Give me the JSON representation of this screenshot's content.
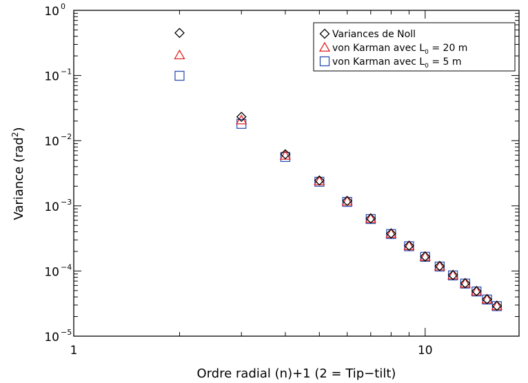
{
  "chart_data": {
    "type": "scatter",
    "x_scale": "log",
    "y_scale": "log",
    "xlim": [
      1,
      18.5
    ],
    "ylim": [
      1e-05,
      1
    ],
    "xlabel": "Ordre radial (n)+1 (2 = Tip−tilt)",
    "ylabel_base": "Variance (rad",
    "ylabel_sup": "2",
    "ylabel_end": ")",
    "x_ticks": [
      {
        "value": 1,
        "label": "1"
      },
      {
        "value": 10,
        "label": "10"
      }
    ],
    "y_ticks": [
      {
        "value": 1,
        "base": "10",
        "exp": "0"
      },
      {
        "value": 0.1,
        "base": "10",
        "exp": "−1"
      },
      {
        "value": 0.01,
        "base": "10",
        "exp": "−2"
      },
      {
        "value": 0.001,
        "base": "10",
        "exp": "−3"
      },
      {
        "value": 0.0001,
        "base": "10",
        "exp": "−4"
      },
      {
        "value": 1e-05,
        "base": "10",
        "exp": "−5"
      }
    ],
    "x": [
      2,
      3,
      4,
      5,
      6,
      7,
      8,
      9,
      10,
      11,
      12,
      13,
      14,
      15,
      16
    ],
    "series": [
      {
        "name_parts": [
          "Variances de Noll"
        ],
        "marker": "diamond",
        "color": "#000000",
        "values": [
          0.45,
          0.0232,
          0.00619,
          0.00245,
          0.00119,
          0.00064,
          0.000376,
          0.000244,
          0.000167,
          0.000119,
          8.66e-05,
          6.49e-05,
          4.91e-05,
          3.69e-05,
          2.92e-05
        ]
      },
      {
        "name_parts": [
          "von Karman avec L",
          "0",
          " = 20 m"
        ],
        "marker": "triangle",
        "color": "#e02020",
        "values": [
          0.205,
          0.0206,
          0.0059,
          0.00239,
          0.00117,
          0.000635,
          0.000373,
          0.000242,
          0.000166,
          0.000118,
          8.6e-05,
          6.45e-05,
          4.88e-05,
          3.67e-05,
          2.9e-05
        ]
      },
      {
        "name_parts": [
          "von Karman avec L",
          "0",
          " = 5 m"
        ],
        "marker": "square",
        "color": "#3050b0",
        "values": [
          0.099,
          0.0181,
          0.00562,
          0.00234,
          0.00115,
          0.000627,
          0.000369,
          0.00024,
          0.000165,
          0.000117,
          8.55e-05,
          6.41e-05,
          4.85e-05,
          3.65e-05,
          2.89e-05
        ]
      }
    ],
    "legend_position": "top-right"
  }
}
